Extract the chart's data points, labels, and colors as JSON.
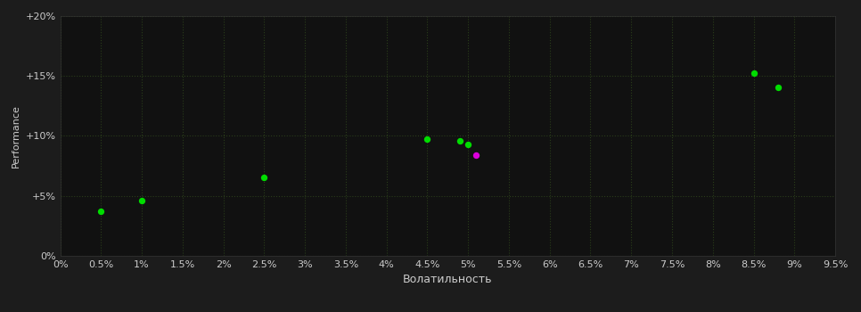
{
  "background_color": "#1c1c1c",
  "plot_bg_color": "#111111",
  "grid_color": "#2a3d1a",
  "tick_color": "#cccccc",
  "xlabel": "Волатильность",
  "ylabel": "Performance",
  "xlim": [
    0.0,
    0.095
  ],
  "ylim": [
    0.0,
    0.2
  ],
  "xticks": [
    0.0,
    0.005,
    0.01,
    0.015,
    0.02,
    0.025,
    0.03,
    0.035,
    0.04,
    0.045,
    0.05,
    0.055,
    0.06,
    0.065,
    0.07,
    0.075,
    0.08,
    0.085,
    0.09,
    0.095
  ],
  "xtick_labels": [
    "0%",
    "0.5%",
    "1%",
    "1.5%",
    "2%",
    "2.5%",
    "3%",
    "3.5%",
    "4%",
    "4.5%",
    "5%",
    "5.5%",
    "6%",
    "6.5%",
    "7%",
    "7.5%",
    "8%",
    "8.5%",
    "9%",
    "9.5%"
  ],
  "yticks": [
    0.0,
    0.05,
    0.1,
    0.15,
    0.2
  ],
  "ytick_labels": [
    "0%",
    "+5%",
    "+10%",
    "+15%",
    "+20%"
  ],
  "green_points": [
    [
      0.005,
      0.037
    ],
    [
      0.01,
      0.046
    ],
    [
      0.025,
      0.065
    ],
    [
      0.045,
      0.097
    ],
    [
      0.049,
      0.096
    ],
    [
      0.05,
      0.093
    ],
    [
      0.085,
      0.152
    ],
    [
      0.088,
      0.14
    ]
  ],
  "magenta_points": [
    [
      0.051,
      0.084
    ]
  ],
  "point_size": 28,
  "green_color": "#00dd00",
  "magenta_color": "#dd00dd",
  "font_size_ticks": 8,
  "font_size_label": 9,
  "font_size_ylabel": 8
}
